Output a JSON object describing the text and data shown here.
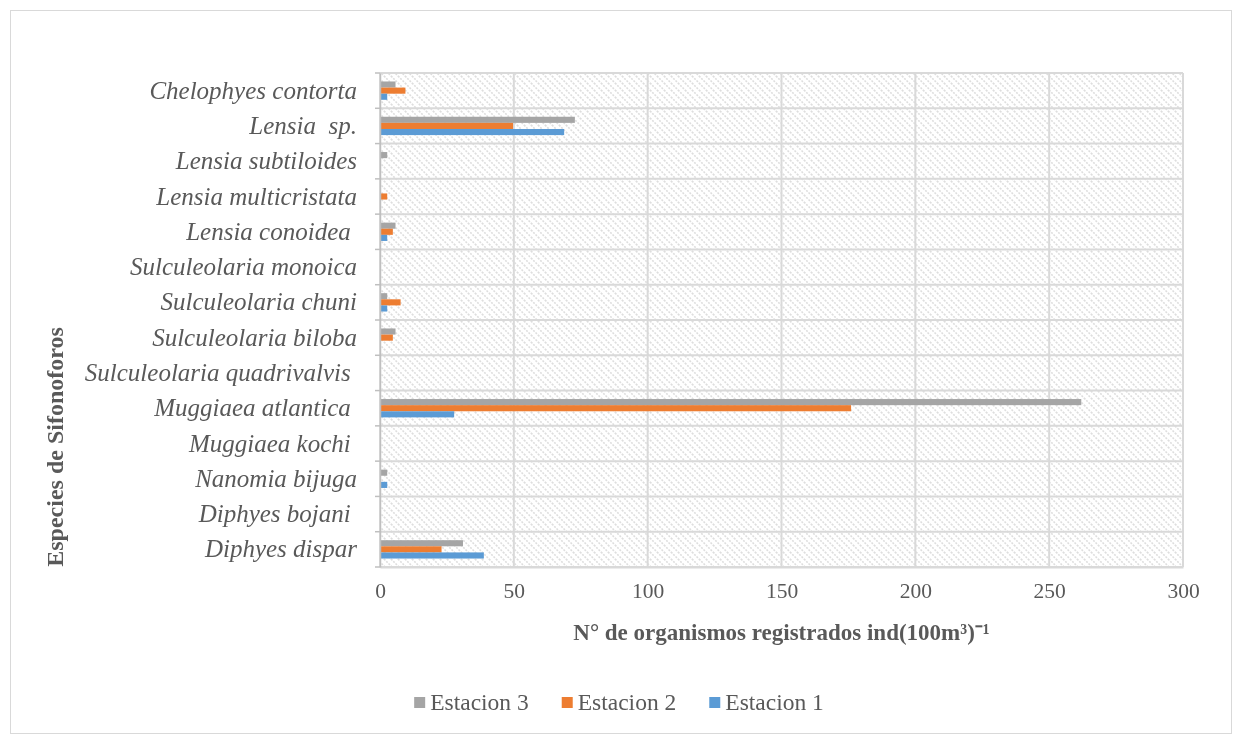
{
  "chart_data": {
    "type": "bar",
    "orientation": "horizontal",
    "xlabel": "N° de organismos registrados ind(100m³)⁻¹",
    "ylabel": "Especies de Sifonoforos",
    "categories": [
      "Chelophyes contorta",
      "Lensia  sp.",
      "Lensia subtiloides",
      "Lensia multicristata",
      "Lensia conoidea ",
      "Sulculeolaria monoica",
      "Sulculeolaria chuni",
      "Sulculeolaria biloba",
      "Sulculeolaria quadrivalvis ",
      "Muggiaea atlantica ",
      "Muggiaea kochi ",
      "Nanomia bijuga",
      "Diphyes bojani ",
      "Diphyes dispar"
    ],
    "series": [
      {
        "name": "Estacion 3",
        "color": "#a5a5a5",
        "values": [
          5.8,
          72.8,
          2.7,
          0,
          5.8,
          0,
          2.7,
          5.8,
          0,
          262,
          0,
          2.7,
          0,
          31
        ]
      },
      {
        "name": "Estacion 2",
        "color": "#ed7d31",
        "values": [
          9.5,
          49.7,
          0,
          2.7,
          4.8,
          0,
          7.7,
          4.8,
          0,
          176,
          0,
          0,
          0,
          23
        ]
      },
      {
        "name": "Estacion 1",
        "color": "#5b9bd5",
        "values": [
          2.7,
          68.8,
          0,
          0,
          2.7,
          0,
          2.7,
          0,
          0,
          27.7,
          0,
          2.7,
          0,
          38.8
        ]
      }
    ],
    "xlim": [
      0,
      300
    ],
    "xticks": [
      0,
      50,
      100,
      150,
      200,
      250,
      300
    ],
    "grid": true,
    "legend": "bottom"
  }
}
